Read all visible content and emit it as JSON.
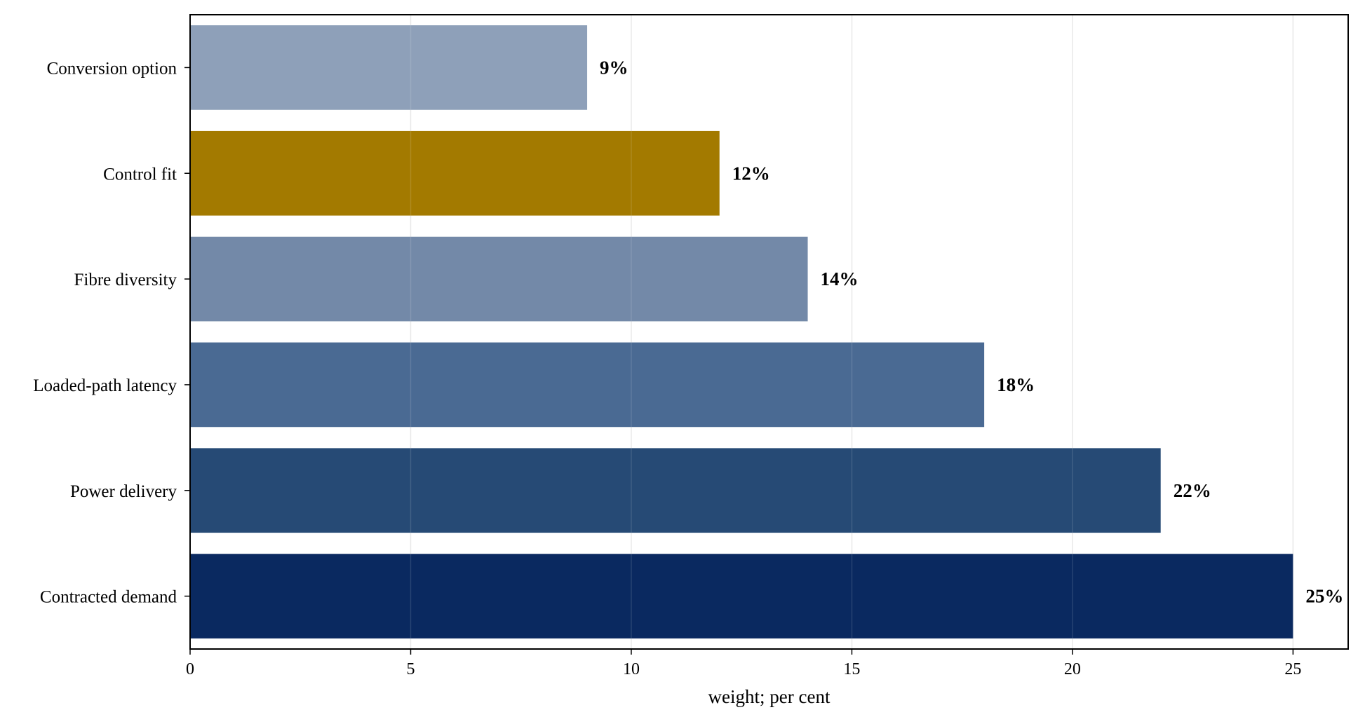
{
  "chart_data": {
    "type": "bar",
    "orientation": "horizontal",
    "categories": [
      "Conversion option",
      "Control fit",
      "Fibre diversity",
      "Loaded-path latency",
      "Power delivery",
      "Contracted demand"
    ],
    "values": [
      9,
      12,
      14,
      18,
      22,
      25
    ],
    "value_labels": [
      "9%",
      "12%",
      "14%",
      "18%",
      "22%",
      "25%"
    ],
    "bar_colors": [
      "#8ea0b9",
      "#a37a00",
      "#7389a8",
      "#4a6a93",
      "#264a75",
      "#0a2960"
    ],
    "title": "",
    "xlabel": "weight; per cent",
    "ylabel": "",
    "xlim": [
      0,
      26.25
    ],
    "xticks": [
      0,
      5,
      10,
      15,
      20,
      25
    ],
    "xtick_labels": [
      "0",
      "5",
      "10",
      "15",
      "20",
      "25"
    ],
    "grid": "vertical",
    "legend": "none"
  }
}
